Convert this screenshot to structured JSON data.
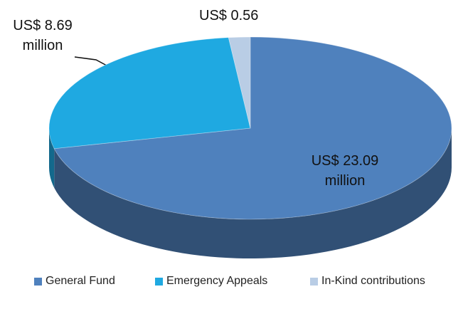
{
  "chart_data": {
    "type": "pie",
    "categories": [
      "General Fund",
      "Emergency Appeals",
      "In-Kind contributions"
    ],
    "values": [
      23.09,
      8.69,
      0.56
    ],
    "value_labels": [
      "US$ 23.09 million",
      "US$ 8.69 million",
      "US$ 0.56"
    ],
    "colors": [
      "#4f81bd",
      "#1fa9e1",
      "#b9cde5"
    ],
    "legend": "bottom"
  }
}
